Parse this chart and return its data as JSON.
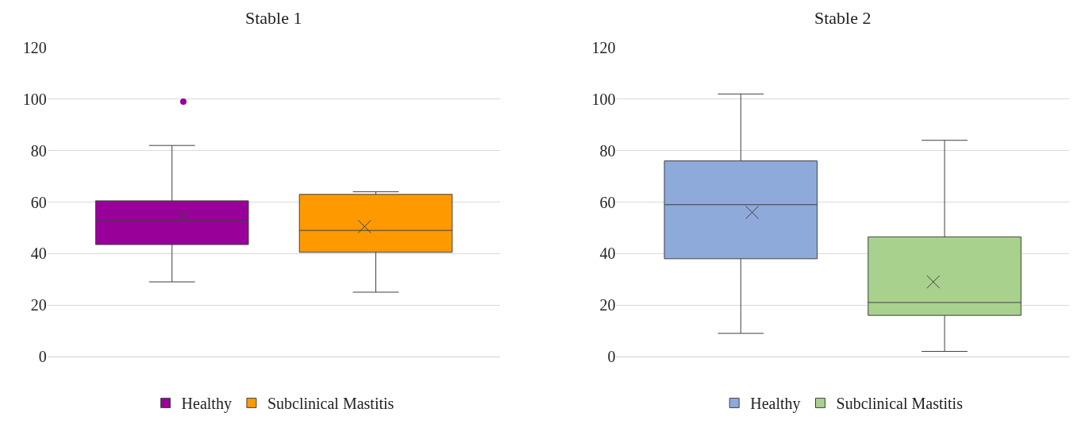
{
  "chart_data": [
    {
      "type": "box",
      "title": "Stable 1",
      "categories": [
        null
      ],
      "ylim": [
        0,
        120
      ],
      "yticks": [
        0,
        20,
        40,
        60,
        80,
        100,
        120
      ],
      "grid": "y",
      "legend": "bottom",
      "tick_labels": "y",
      "series": [
        {
          "name": "Healthy",
          "color": "#990099",
          "boxes": [
            {
              "low": 29,
              "q1": 43.5,
              "median": 53,
              "q3": 60.5,
              "high": 82,
              "mean": 54.5,
              "outliers": [
                99
              ]
            }
          ]
        },
        {
          "name": "Subclinical Mastitis",
          "color": "#ff9900",
          "boxes": [
            {
              "low": 25,
              "q1": 40.5,
              "median": 49,
              "q3": 63,
              "high": 64,
              "mean": 50.5
            }
          ]
        }
      ]
    },
    {
      "type": "box",
      "title": "Stable 2",
      "categories": [
        null
      ],
      "ylim": [
        0,
        120
      ],
      "yticks": [
        0,
        20,
        40,
        60,
        80,
        100,
        120
      ],
      "grid": "y",
      "legend": "bottom",
      "tick_labels": "y",
      "series": [
        {
          "name": "Healthy",
          "color": "#8eaadb",
          "boxes": [
            {
              "low": 9,
              "q1": 38,
              "median": 59,
              "q3": 76,
              "high": 102,
              "mean": 56
            }
          ]
        },
        {
          "name": "Subclinical Mastitis",
          "color": "#a9d18e",
          "boxes": [
            {
              "low": 2,
              "q1": 16,
              "median": 21,
              "q3": 46.5,
              "high": 84,
              "mean": 29
            }
          ]
        }
      ]
    }
  ]
}
